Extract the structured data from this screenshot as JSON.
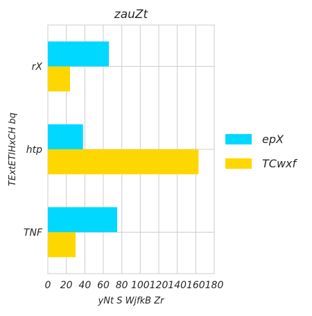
{
  "chart_data": {
    "type": "bar",
    "orientation": "horizontal",
    "title": "zauZt",
    "xlabel": "yNt S WjfkB Zr",
    "ylabel": "TExtETIHxCH bq",
    "categories": [
      "rX",
      "htp",
      "TNF"
    ],
    "series": [
      {
        "name": "epX",
        "values": [
          66,
          38,
          75
        ],
        "color": "#00d8ff"
      },
      {
        "name": "TCwxf",
        "values": [
          24,
          163,
          30
        ],
        "color": "#ffd700"
      }
    ],
    "xlim": [
      0,
      180
    ],
    "xticks": [
      0,
      20,
      40,
      60,
      80,
      100,
      120,
      140,
      160,
      180
    ],
    "grid": true,
    "legend_position": "right"
  }
}
